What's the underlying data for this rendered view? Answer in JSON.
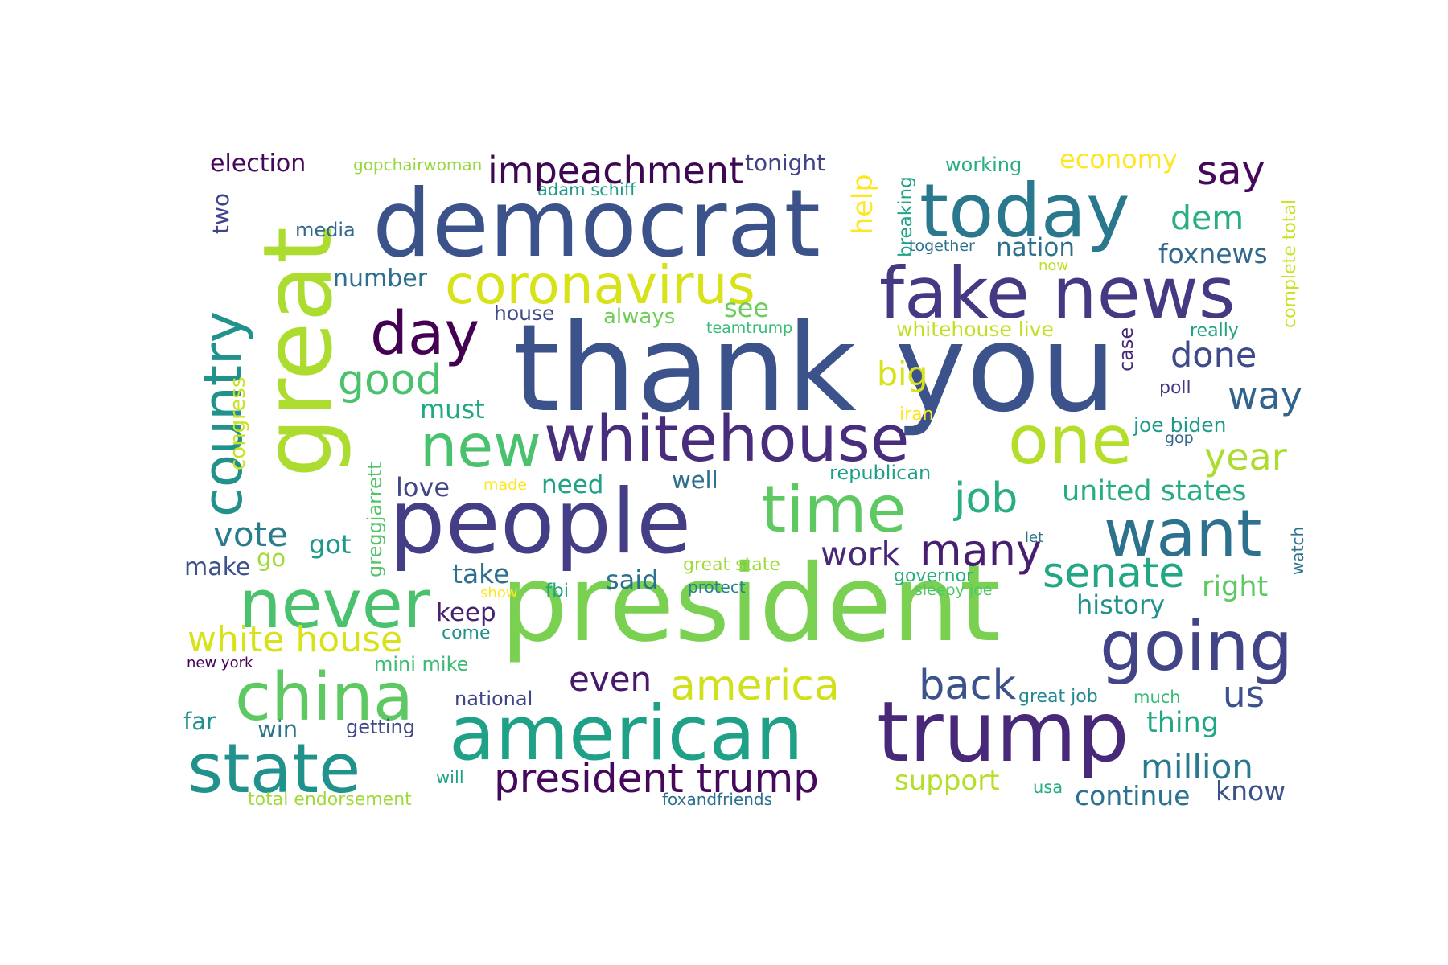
{
  "background": "#ffffff",
  "words": [
    {
      "text": "thank you",
      "color": "#3b528b"
    },
    {
      "text": "president",
      "color": "#7ad151"
    },
    {
      "text": "democrat",
      "color": "#3b528b"
    },
    {
      "text": "people",
      "color": "#433e85"
    },
    {
      "text": "great",
      "color": "#addc30"
    },
    {
      "text": "american",
      "color": "#1fa188"
    },
    {
      "text": "trump",
      "color": "#482878"
    },
    {
      "text": "today",
      "color": "#2a788e"
    },
    {
      "text": "fake news",
      "color": "#443983"
    },
    {
      "text": "whitehouse",
      "color": "#472d7b"
    },
    {
      "text": "time",
      "color": "#5ec962"
    },
    {
      "text": "one",
      "color": "#b5de2b"
    },
    {
      "text": "want",
      "color": "#2c728e"
    },
    {
      "text": "going",
      "color": "#414487"
    },
    {
      "text": "never",
      "color": "#4ac16d"
    },
    {
      "text": "china",
      "color": "#5ec962"
    },
    {
      "text": "state",
      "color": "#21918c"
    },
    {
      "text": "new",
      "color": "#4ac16d"
    },
    {
      "text": "day",
      "color": "#440154"
    },
    {
      "text": "coronavirus",
      "color": "#d8e219"
    },
    {
      "text": "country",
      "color": "#21918c"
    },
    {
      "text": "president trump",
      "color": "#46085c"
    },
    {
      "text": "impeachment",
      "color": "#3e0751"
    },
    {
      "text": "america",
      "color": "#d0e11c"
    },
    {
      "text": "white house",
      "color": "#d8e219"
    },
    {
      "text": "senate",
      "color": "#22a785"
    },
    {
      "text": "many",
      "color": "#481f70"
    },
    {
      "text": "job",
      "color": "#29af7f"
    },
    {
      "text": "back",
      "color": "#3b528b"
    },
    {
      "text": "good",
      "color": "#4ac16d"
    },
    {
      "text": "say",
      "color": "#46085c"
    },
    {
      "text": "vote",
      "color": "#287c8e"
    },
    {
      "text": "year",
      "color": "#addc30"
    },
    {
      "text": "way",
      "color": "#33638d"
    },
    {
      "text": "done",
      "color": "#3e4a89"
    },
    {
      "text": "us",
      "color": "#3b528b"
    },
    {
      "text": "million",
      "color": "#2a788e"
    },
    {
      "text": "work",
      "color": "#482878"
    },
    {
      "text": "even",
      "color": "#48186a"
    },
    {
      "text": "dem",
      "color": "#29af7f"
    },
    {
      "text": "big",
      "color": "#d8e219"
    },
    {
      "text": "help",
      "color": "#fde725"
    },
    {
      "text": "united states",
      "color": "#26ad81"
    },
    {
      "text": "support",
      "color": "#b5de2b"
    },
    {
      "text": "continue",
      "color": "#2c728e"
    },
    {
      "text": "know",
      "color": "#3b528b"
    },
    {
      "text": "right",
      "color": "#5ec962"
    },
    {
      "text": "history",
      "color": "#21918c"
    },
    {
      "text": "thing",
      "color": "#22a785"
    },
    {
      "text": "foxnews",
      "color": "#31688e"
    },
    {
      "text": "nation",
      "color": "#2d708e"
    },
    {
      "text": "keep",
      "color": "#482173"
    },
    {
      "text": "take",
      "color": "#2d708e"
    },
    {
      "text": "said",
      "color": "#2c728e"
    },
    {
      "text": "need",
      "color": "#20a386"
    },
    {
      "text": "love",
      "color": "#3f4788"
    },
    {
      "text": "must",
      "color": "#22a785"
    },
    {
      "text": "see",
      "color": "#6ccd5a"
    },
    {
      "text": "number",
      "color": "#2d708e"
    },
    {
      "text": "got",
      "color": "#1f988b"
    },
    {
      "text": "make",
      "color": "#3b528b"
    },
    {
      "text": "go",
      "color": "#a0da39"
    },
    {
      "text": "election",
      "color": "#46085c"
    },
    {
      "text": "economy",
      "color": "#fde725"
    },
    {
      "text": "tonight",
      "color": "#414487"
    },
    {
      "text": "two",
      "color": "#414487"
    },
    {
      "text": "well",
      "color": "#2d708e"
    },
    {
      "text": "win",
      "color": "#2a788e"
    },
    {
      "text": "far",
      "color": "#21918c"
    },
    {
      "text": "congress",
      "color": "#cae11f"
    },
    {
      "text": "greggjarrett",
      "color": "#52c569"
    },
    {
      "text": "media",
      "color": "#31688e"
    },
    {
      "text": "house",
      "color": "#3e4a89"
    },
    {
      "text": "always",
      "color": "#6ece58"
    },
    {
      "text": "whitehouse live",
      "color": "#c2df23"
    },
    {
      "text": "case",
      "color": "#482878"
    },
    {
      "text": "breaking",
      "color": "#20a386"
    },
    {
      "text": "complete total",
      "color": "#cae11f"
    },
    {
      "text": "working",
      "color": "#29af7f"
    },
    {
      "text": "gopchairwoman",
      "color": "#95d840"
    },
    {
      "text": "adam schiff",
      "color": "#1e9c89"
    },
    {
      "text": "together",
      "color": "#2c728e"
    },
    {
      "text": "now",
      "color": "#bddf26"
    },
    {
      "text": "teamtrump",
      "color": "#3bbb75"
    },
    {
      "text": "really",
      "color": "#20a386"
    },
    {
      "text": "poll",
      "color": "#453781"
    },
    {
      "text": "iran",
      "color": "#fde725"
    },
    {
      "text": "joe biden",
      "color": "#1f9a8a"
    },
    {
      "text": "gop",
      "color": "#31688e"
    },
    {
      "text": "republican",
      "color": "#1fa188"
    },
    {
      "text": "let",
      "color": "#2c728e"
    },
    {
      "text": "watch",
      "color": "#2c728e"
    },
    {
      "text": "great state",
      "color": "#a0da39"
    },
    {
      "text": "governor",
      "color": "#29af7f"
    },
    {
      "text": "sleepy joe",
      "color": "#52c569"
    },
    {
      "text": "protect",
      "color": "#26828e"
    },
    {
      "text": "fbi",
      "color": "#20a386"
    },
    {
      "text": "show",
      "color": "#fde725"
    },
    {
      "text": "made",
      "color": "#fde725"
    },
    {
      "text": "come",
      "color": "#21918c"
    },
    {
      "text": "mini mike",
      "color": "#3bbb75"
    },
    {
      "text": "national",
      "color": "#414487"
    },
    {
      "text": "getting",
      "color": "#3e4a89"
    },
    {
      "text": "will",
      "color": "#20a386"
    },
    {
      "text": "great job",
      "color": "#23898e"
    },
    {
      "text": "much",
      "color": "#3bbb75"
    },
    {
      "text": "usa",
      "color": "#26ad81"
    },
    {
      "text": "foxandfriends",
      "color": "#2d708e"
    },
    {
      "text": "total endorsement",
      "color": "#a0da39"
    },
    {
      "text": "new york",
      "color": "#440154"
    }
  ]
}
